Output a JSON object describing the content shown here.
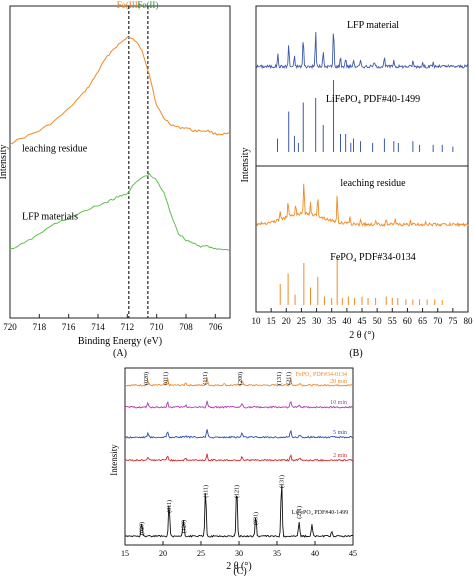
{
  "panels": [
    {
      "id": "A",
      "caption": "(A)"
    },
    {
      "id": "B",
      "caption": "(B)"
    },
    {
      "id": "C",
      "caption": "(C)"
    }
  ],
  "chart_data": [
    {
      "id": "A",
      "type": "line",
      "title": "",
      "xlabel": "Binding Energy (eV)",
      "ylabel": "Intensity",
      "xlim": [
        720,
        705
      ],
      "xticks": [
        720,
        718,
        716,
        714,
        712,
        710,
        708,
        706
      ],
      "reference_lines": [
        {
          "label": "Fe(III)",
          "x": 711.9,
          "color": "#e07b1a"
        },
        {
          "label": "Fe(II)",
          "x": 710.6,
          "color": "#2a8a2a"
        }
      ],
      "series": [
        {
          "name": "leaching residue",
          "color": "#f08a24",
          "x": [
            720,
            719,
            718,
            717,
            716,
            715,
            714.5,
            714,
            713.5,
            713,
            712.5,
            712,
            711.5,
            711,
            710.5,
            710,
            709.5,
            709,
            708.5,
            708,
            707.5,
            707,
            706.5,
            706,
            705.5,
            705
          ],
          "y": [
            0.56,
            0.58,
            0.6,
            0.63,
            0.67,
            0.72,
            0.75,
            0.79,
            0.83,
            0.86,
            0.88,
            0.9,
            0.89,
            0.86,
            0.78,
            0.68,
            0.64,
            0.62,
            0.61,
            0.61,
            0.6,
            0.6,
            0.6,
            0.59,
            0.59,
            0.59
          ]
        },
        {
          "name": "LFP materials",
          "color": "#5cc24a",
          "x": [
            720,
            719,
            718,
            717,
            716,
            715,
            714,
            713.5,
            713,
            712.5,
            712,
            711.5,
            711,
            710.5,
            710,
            709.5,
            709,
            708.5,
            708,
            707.5,
            707,
            706.5,
            706,
            705.5,
            705
          ],
          "y": [
            0.22,
            0.24,
            0.27,
            0.3,
            0.32,
            0.34,
            0.36,
            0.37,
            0.38,
            0.39,
            0.4,
            0.43,
            0.45,
            0.46,
            0.44,
            0.4,
            0.33,
            0.27,
            0.25,
            0.24,
            0.23,
            0.23,
            0.22,
            0.22,
            0.22
          ]
        }
      ]
    },
    {
      "id": "B",
      "type": "line",
      "title": "",
      "xlabel": "2 θ (°)",
      "ylabel": "Intensity",
      "xlim": [
        10,
        80
      ],
      "xticks": [
        10,
        15,
        20,
        25,
        30,
        35,
        40,
        45,
        50,
        55,
        60,
        65,
        70,
        75,
        80
      ],
      "labels": [
        "LFP material",
        "LiFePO₄ PDF#40-1499",
        "leaching residue",
        "FePO₄ PDF#34-0134"
      ],
      "series": [
        {
          "name": "LFP material",
          "color": "#3d5aa8",
          "kind": "pattern",
          "peaks": [
            [
              17.2,
              0.25
            ],
            [
              20.8,
              0.45
            ],
            [
              22.7,
              0.2
            ],
            [
              25.6,
              0.6
            ],
            [
              29.7,
              0.72
            ],
            [
              32.2,
              0.3
            ],
            [
              35.6,
              0.8
            ],
            [
              37.9,
              0.2
            ],
            [
              39.6,
              0.18
            ],
            [
              42.2,
              0.15
            ],
            [
              44.5,
              0.12
            ],
            [
              49.0,
              0.1
            ],
            [
              52.4,
              0.18
            ],
            [
              55.5,
              0.15
            ],
            [
              61.8,
              0.12
            ],
            [
              65.0,
              0.08
            ],
            [
              68.5,
              0.08
            ]
          ]
        },
        {
          "name": "LiFePO₄ PDF#40-1499",
          "color": "#3d5aa8",
          "kind": "sticks",
          "peaks": [
            [
              17.1,
              0.15
            ],
            [
              20.8,
              0.45
            ],
            [
              22.7,
              0.18
            ],
            [
              24.0,
              0.1
            ],
            [
              25.6,
              0.55
            ],
            [
              29.7,
              0.6
            ],
            [
              32.2,
              0.3
            ],
            [
              35.6,
              0.8
            ],
            [
              37.9,
              0.2
            ],
            [
              39.6,
              0.2
            ],
            [
              41.3,
              0.1
            ],
            [
              42.2,
              0.15
            ],
            [
              44.5,
              0.12
            ],
            [
              48.5,
              0.1
            ],
            [
              52.4,
              0.15
            ],
            [
              55.5,
              0.12
            ],
            [
              57.0,
              0.1
            ],
            [
              61.8,
              0.12
            ],
            [
              64.0,
              0.08
            ],
            [
              68.5,
              0.08
            ],
            [
              71.5,
              0.08
            ],
            [
              75.0,
              0.06
            ]
          ]
        },
        {
          "name": "leaching residue",
          "color": "#f08a24",
          "kind": "pattern",
          "peaks": [
            [
              18.0,
              0.15
            ],
            [
              20.6,
              0.3
            ],
            [
              23.1,
              0.15
            ],
            [
              25.8,
              0.55
            ],
            [
              28.0,
              0.2
            ],
            [
              30.4,
              0.35
            ],
            [
              36.8,
              0.45
            ],
            [
              41.0,
              0.1
            ],
            [
              44.6,
              0.1
            ],
            [
              49.5,
              0.08
            ],
            [
              53.0,
              0.1
            ],
            [
              56.0,
              0.08
            ],
            [
              61.0,
              0.07
            ],
            [
              66.0,
              0.06
            ]
          ]
        },
        {
          "name": "FePO₄ PDF#34-0134",
          "color": "#f08a24",
          "kind": "sticks",
          "peaks": [
            [
              18.0,
              0.3
            ],
            [
              20.6,
              0.45
            ],
            [
              22.9,
              0.15
            ],
            [
              25.8,
              0.6
            ],
            [
              28.0,
              0.25
            ],
            [
              30.4,
              0.4
            ],
            [
              32.6,
              0.12
            ],
            [
              35.0,
              0.1
            ],
            [
              36.8,
              0.7
            ],
            [
              38.5,
              0.1
            ],
            [
              40.5,
              0.12
            ],
            [
              42.5,
              0.1
            ],
            [
              45.0,
              0.12
            ],
            [
              47.0,
              0.1
            ],
            [
              49.5,
              0.1
            ],
            [
              53.0,
              0.12
            ],
            [
              55.0,
              0.1
            ],
            [
              56.8,
              0.1
            ],
            [
              59.5,
              0.08
            ],
            [
              61.8,
              0.08
            ],
            [
              64.0,
              0.08
            ],
            [
              66.5,
              0.08
            ],
            [
              69.0,
              0.08
            ],
            [
              71.5,
              0.07
            ]
          ]
        }
      ]
    },
    {
      "id": "C",
      "type": "line",
      "title": "",
      "xlabel": "2 θ (°)",
      "ylabel": "Intensity",
      "xlim": [
        15,
        45
      ],
      "xticks": [
        15,
        20,
        25,
        30,
        35,
        40,
        45
      ],
      "series": [
        {
          "name": "FePO₄ PDF#34-0134",
          "label2": "20 min",
          "color": "#f08a24",
          "peaks": [
            [
              18.0,
              0.35
            ],
            [
              20.6,
              0.45
            ],
            [
              23.0,
              0.2
            ],
            [
              25.8,
              0.6
            ],
            [
              28.0,
              0.15
            ],
            [
              30.4,
              0.4
            ],
            [
              36.8,
              0.55
            ],
            [
              38.0,
              0.2
            ]
          ]
        },
        {
          "name": "10 min",
          "color": "#b03ab0",
          "peaks": [
            [
              18.0,
              0.3
            ],
            [
              20.6,
              0.4
            ],
            [
              23.0,
              0.18
            ],
            [
              25.8,
              0.55
            ],
            [
              30.4,
              0.35
            ],
            [
              36.8,
              0.5
            ],
            [
              38.0,
              0.15
            ]
          ]
        },
        {
          "name": "5 min",
          "color": "#2b4fb0",
          "peaks": [
            [
              18.0,
              0.3
            ],
            [
              20.6,
              0.45
            ],
            [
              23.0,
              0.15
            ],
            [
              25.8,
              0.55
            ],
            [
              30.4,
              0.35
            ],
            [
              36.8,
              0.5
            ],
            [
              38.0,
              0.15
            ]
          ]
        },
        {
          "name": "2 min",
          "color": "#d42828",
          "peaks": [
            [
              18.0,
              0.28
            ],
            [
              20.6,
              0.4
            ],
            [
              23.0,
              0.15
            ],
            [
              25.8,
              0.5
            ],
            [
              30.4,
              0.32
            ],
            [
              36.8,
              0.45
            ],
            [
              38.0,
              0.15
            ]
          ]
        },
        {
          "name": "LiFePO₄ PDF#40-1499",
          "color": "#111111",
          "peaks": [
            [
              17.2,
              0.3
            ],
            [
              20.8,
              0.7
            ],
            [
              22.7,
              0.35
            ],
            [
              25.6,
              1.0
            ],
            [
              29.7,
              1.05
            ],
            [
              32.2,
              0.45
            ],
            [
              35.6,
              1.2
            ],
            [
              37.9,
              0.3
            ],
            [
              39.6,
              0.25
            ],
            [
              42.2,
              0.1
            ]
          ]
        }
      ],
      "peak_labels_top": [
        [
          "(020)",
          18.0
        ],
        [
          "(011)",
          20.6
        ],
        [
          "(111)",
          25.8
        ],
        [
          "(200)",
          30.4
        ],
        [
          "(131)",
          35.5
        ],
        [
          "(211)",
          36.8
        ]
      ],
      "peak_labels_bottom": [
        [
          "(020)",
          17.2
        ],
        [
          "(011)",
          20.8
        ],
        [
          "(120)",
          22.7
        ],
        [
          "(111)",
          25.6
        ],
        [
          "(121)",
          29.7
        ],
        [
          "(031)",
          32.2
        ],
        [
          "(131)",
          35.6
        ],
        [
          "(211)",
          37.9
        ]
      ]
    }
  ]
}
